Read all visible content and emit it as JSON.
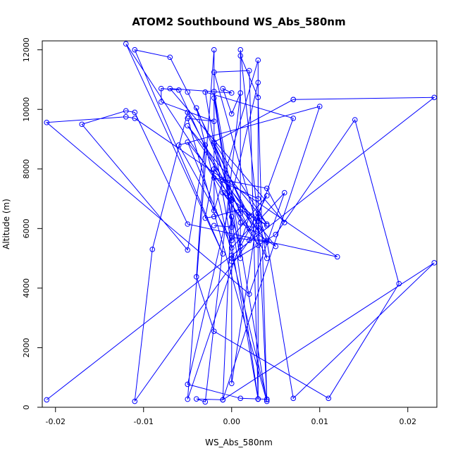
{
  "chart_data": {
    "type": "line",
    "title": "ATOM2 Southbound WS_Abs_580nm",
    "xlabel": "WS_Abs_580nm",
    "ylabel": "Altitude (m)",
    "xlim": [
      -0.0215,
      0.0233
    ],
    "ylim": [
      0,
      12300
    ],
    "x_ticks": [
      -0.02,
      -0.01,
      0.0,
      0.01,
      0.02
    ],
    "x_tick_labels": [
      "-0.02",
      "-0.01",
      "0.00",
      "0.01",
      "0.02"
    ],
    "y_ticks": [
      0,
      2000,
      4000,
      6000,
      8000,
      10000,
      12000
    ],
    "y_tick_labels": [
      "0",
      "2000",
      "4000",
      "6000",
      "8000",
      "10000",
      "12000"
    ],
    "grid": false,
    "line_color": "#0000ff",
    "marker": "open-circle",
    "points": [
      {
        "x": -0.021,
        "y": 250
      },
      {
        "x": 0.023,
        "y": 10400
      },
      {
        "x": 0.007,
        "y": 10330
      },
      {
        "x": 0.007,
        "y": 10330
      },
      {
        "x": -0.002,
        "y": 8900
      },
      {
        "x": 0.004,
        "y": 6150
      },
      {
        "x": -0.005,
        "y": 9450
      },
      {
        "x": 0.003,
        "y": 5950
      },
      {
        "x": -0.002,
        "y": 11250
      },
      {
        "x": 0.002,
        "y": 11300
      },
      {
        "x": 0.003,
        "y": 270
      },
      {
        "x": -0.003,
        "y": 10580
      },
      {
        "x": 0.007,
        "y": 9700
      },
      {
        "x": 0.002,
        "y": 5600
      },
      {
        "x": -0.011,
        "y": 200
      },
      {
        "x": -0.009,
        "y": 5300
      },
      {
        "x": -0.005,
        "y": 9900
      },
      {
        "x": 0.003,
        "y": 5440
      },
      {
        "x": -0.012,
        "y": 12200
      },
      {
        "x": -0.001,
        "y": 5150
      },
      {
        "x": -0.011,
        "y": 12000
      },
      {
        "x": -0.007,
        "y": 11750
      },
      {
        "x": -0.005,
        "y": 10580
      },
      {
        "x": 0.002,
        "y": 6400
      },
      {
        "x": -0.005,
        "y": 270
      },
      {
        "x": -0.002,
        "y": 12000
      },
      {
        "x": -0.002,
        "y": 6600
      },
      {
        "x": 0.003,
        "y": 11650
      },
      {
        "x": 0.003,
        "y": 280
      },
      {
        "x": -0.002,
        "y": 10380
      },
      {
        "x": 0.001,
        "y": 5000
      },
      {
        "x": 0.001,
        "y": 11800
      },
      {
        "x": 0.003,
        "y": 10400
      },
      {
        "x": 0.004,
        "y": 260
      },
      {
        "x": -0.004,
        "y": 10050
      },
      {
        "x": 0.001,
        "y": 6500
      },
      {
        "x": 0.001,
        "y": 12000
      },
      {
        "x": 0.003,
        "y": 6250
      },
      {
        "x": 0.006,
        "y": 7200
      },
      {
        "x": 0.002,
        "y": 3800
      },
      {
        "x": -0.021,
        "y": 9560
      },
      {
        "x": -0.012,
        "y": 9750
      },
      {
        "x": -0.011,
        "y": 9700
      },
      {
        "x": 0.012,
        "y": 5050
      },
      {
        "x": -0.005,
        "y": 6150
      },
      {
        "x": -0.011,
        "y": 9900
      },
      {
        "x": -0.012,
        "y": 9950
      },
      {
        "x": -0.017,
        "y": 9500
      },
      {
        "x": -0.005,
        "y": 5280
      },
      {
        "x": -0.003,
        "y": 8800
      },
      {
        "x": -0.004,
        "y": 4380
      },
      {
        "x": -0.002,
        "y": 2550
      },
      {
        "x": 0.011,
        "y": 300
      },
      {
        "x": 0.019,
        "y": 4150
      },
      {
        "x": 0.014,
        "y": 9650
      },
      {
        "x": 0.005,
        "y": 5800
      },
      {
        "x": 0.0,
        "y": 4900
      },
      {
        "x": 0.0,
        "y": 5000
      },
      {
        "x": 0.0,
        "y": 5100
      },
      {
        "x": 0.0,
        "y": 800
      },
      {
        "x": 0.003,
        "y": 6500
      },
      {
        "x": 0.004,
        "y": 270
      },
      {
        "x": 0.001,
        "y": 300
      },
      {
        "x": -0.005,
        "y": 770
      },
      {
        "x": 0.003,
        "y": 10900
      },
      {
        "x": 0.003,
        "y": 7000
      },
      {
        "x": -0.002,
        "y": 7700
      },
      {
        "x": 0.004,
        "y": 7350
      },
      {
        "x": 0.006,
        "y": 6200
      },
      {
        "x": -0.007,
        "y": 10700
      },
      {
        "x": 0.0,
        "y": 10550
      },
      {
        "x": -0.001,
        "y": 10700
      },
      {
        "x": 0.0,
        "y": 9850
      },
      {
        "x": 0.001,
        "y": 10550
      },
      {
        "x": -0.003,
        "y": 180
      },
      {
        "x": -0.004,
        "y": 280
      },
      {
        "x": -0.001,
        "y": 250
      },
      {
        "x": 0.0,
        "y": 6950
      },
      {
        "x": -0.002,
        "y": 8850
      },
      {
        "x": 0.004,
        "y": 5000
      },
      {
        "x": 0.003,
        "y": 6500
      },
      {
        "x": 0.004,
        "y": 5600
      },
      {
        "x": 0.007,
        "y": 300
      },
      {
        "x": 0.023,
        "y": 4850
      },
      {
        "x": -0.001,
        "y": 250
      },
      {
        "x": 0.01,
        "y": 10100
      },
      {
        "x": -0.006,
        "y": 8800
      },
      {
        "x": 0.0,
        "y": 5600
      },
      {
        "x": 0.0,
        "y": 6400
      },
      {
        "x": 0.001,
        "y": 5400
      },
      {
        "x": 0.004,
        "y": 7100
      },
      {
        "x": 0.0,
        "y": 5700
      },
      {
        "x": 0.004,
        "y": 5550
      },
      {
        "x": -0.005,
        "y": 8900
      },
      {
        "x": 0.0,
        "y": 5350
      },
      {
        "x": 0.002,
        "y": 6000
      },
      {
        "x": -0.001,
        "y": 7200
      },
      {
        "x": 0.004,
        "y": 6100
      },
      {
        "x": 0.001,
        "y": 6650
      },
      {
        "x": -0.002,
        "y": 6400
      },
      {
        "x": -0.003,
        "y": 6350
      },
      {
        "x": -0.002,
        "y": 8000
      },
      {
        "x": 0.005,
        "y": 5400
      },
      {
        "x": 0.001,
        "y": 6200
      },
      {
        "x": -0.006,
        "y": 10650
      },
      {
        "x": -0.008,
        "y": 10700
      },
      {
        "x": -0.008,
        "y": 10250
      },
      {
        "x": -0.002,
        "y": 9600
      },
      {
        "x": -0.005,
        "y": 9700
      },
      {
        "x": 0.004,
        "y": 200
      },
      {
        "x": -0.002,
        "y": 10600
      },
      {
        "x": 0.0,
        "y": 6050
      },
      {
        "x": -0.002,
        "y": 6100
      }
    ]
  }
}
